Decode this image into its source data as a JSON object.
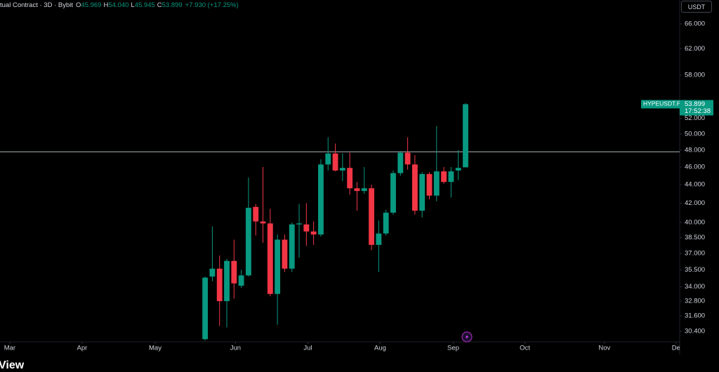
{
  "header": {
    "symbol": "tual Contract · 3D · Bybit",
    "ohlc": [
      {
        "key": "O",
        "value": "45.969"
      },
      {
        "key": "H",
        "value": "54.040"
      },
      {
        "key": "L",
        "value": "45.945"
      },
      {
        "key": "C",
        "value": "53.899"
      }
    ],
    "change": "+7.930 (+17.25%)"
  },
  "currency": "USDT",
  "brand": "View",
  "chart_data": {
    "type": "candlestick",
    "log_scale": true,
    "grid": false,
    "up_color": "#089981",
    "down_color": "#f23645",
    "x": [
      0,
      1,
      2,
      3,
      4,
      5,
      6,
      7,
      8,
      9,
      10,
      11,
      12,
      13,
      14,
      15,
      16,
      17,
      18,
      19,
      20,
      21,
      22,
      23,
      24,
      25,
      26,
      27,
      28,
      29,
      30,
      31,
      32,
      33,
      34,
      35,
      36
    ],
    "open": [
      29.8,
      34.9,
      35.6,
      32.8,
      36.3,
      34.1,
      35.0,
      41.6,
      40.1,
      39.9,
      33.4,
      38.3,
      35.6,
      39.8,
      39.8,
      39.1,
      38.8,
      46.3,
      47.6,
      45.6,
      45.9,
      43.6,
      43.3,
      43.6,
      37.8,
      38.9,
      41.0,
      45.3,
      47.7,
      46.3,
      41.2,
      45.2,
      42.8,
      45.5,
      44.3,
      45.6,
      45.969
    ],
    "high": [
      34.9,
      39.6,
      36.8,
      36.5,
      38.3,
      35.5,
      44.8,
      41.9,
      46.0,
      41.4,
      38.8,
      38.8,
      40.0,
      41.9,
      42.0,
      40.1,
      46.9,
      49.6,
      48.8,
      47.6,
      47.7,
      44.3,
      46.0,
      44.0,
      40.2,
      41.3,
      45.6,
      47.9,
      49.6,
      47.4,
      45.4,
      45.4,
      51.0,
      46.0,
      46.0,
      48.0,
      54.04
    ],
    "low": [
      29.7,
      34.5,
      30.8,
      30.7,
      33.0,
      33.9,
      34.9,
      38.7,
      38.0,
      33.2,
      30.9,
      35.3,
      35.3,
      36.6,
      37.7,
      37.8,
      38.6,
      45.6,
      45.5,
      44.4,
      42.9,
      41.2,
      43.0,
      37.3,
      35.3,
      38.7,
      40.8,
      45.0,
      45.7,
      40.8,
      40.5,
      42.4,
      42.2,
      44.1,
      42.6,
      44.5,
      45.945
    ],
    "close": [
      34.8,
      35.6,
      32.8,
      36.3,
      34.3,
      35.0,
      41.5,
      40.1,
      39.9,
      33.4,
      38.3,
      35.6,
      39.8,
      39.9,
      39.1,
      38.8,
      46.3,
      47.6,
      45.6,
      45.9,
      43.6,
      43.3,
      43.6,
      37.8,
      38.9,
      41.0,
      45.3,
      47.7,
      46.3,
      41.2,
      45.2,
      42.8,
      45.5,
      44.3,
      45.5,
      45.9,
      53.899
    ],
    "xlim": [
      -28.35,
      65.6
    ],
    "xticks": [
      {
        "value": -27.0,
        "label": "Mar"
      },
      {
        "value": -17.0,
        "label": "Apr"
      },
      {
        "value": -6.9,
        "label": "May"
      },
      {
        "value": 4.2,
        "label": "Jun"
      },
      {
        "value": 14.2,
        "label": "Jul"
      },
      {
        "value": 24.2,
        "label": "Aug"
      },
      {
        "value": 34.3,
        "label": "Sep"
      },
      {
        "value": 44.2,
        "label": "Oct"
      },
      {
        "value": 55.2,
        "label": "Nov"
      },
      {
        "value": 65.1,
        "label": "De"
      }
    ],
    "ylim": [
      29.6,
      70.1
    ],
    "yticks": [
      {
        "value": 66,
        "label": "66.000"
      },
      {
        "value": 62,
        "label": "62.000"
      },
      {
        "value": 58,
        "label": "58.000"
      },
      {
        "value": 52,
        "label": "52.000"
      },
      {
        "value": 50,
        "label": "50.000"
      },
      {
        "value": 48,
        "label": "48.000"
      },
      {
        "value": 46,
        "label": "46.000"
      },
      {
        "value": 44,
        "label": "44.000"
      },
      {
        "value": 42,
        "label": "42.000"
      },
      {
        "value": 40,
        "label": "40.000"
      },
      {
        "value": 38.5,
        "label": "38.500"
      },
      {
        "value": 37,
        "label": "37.000"
      },
      {
        "value": 35.5,
        "label": "35.500"
      },
      {
        "value": 34,
        "label": "34.000"
      },
      {
        "value": 32.8,
        "label": "32.800"
      },
      {
        "value": 31.6,
        "label": "31.600"
      },
      {
        "value": 30.4,
        "label": "30.400"
      }
    ],
    "hline": 47.8,
    "hline_color": "#b2b5be",
    "price_tag": {
      "symbol": "HYPEUSDT.P",
      "price": 53.899,
      "countdown": "17:52:38"
    }
  }
}
